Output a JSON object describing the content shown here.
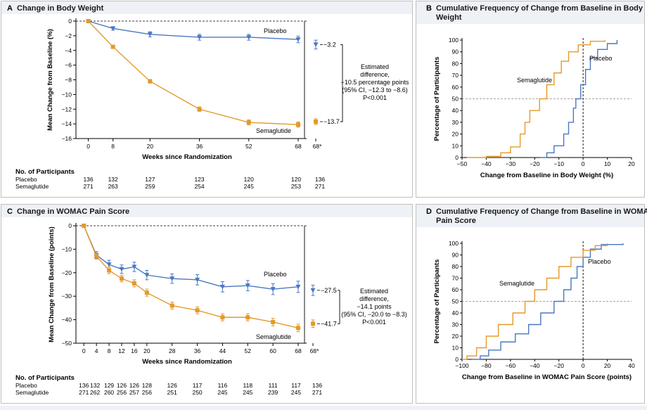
{
  "colors": {
    "placebo": "#4a78c0",
    "semaglutide": "#e39a2b",
    "header_bg": "#eef1f6",
    "border": "#bfbfbf"
  },
  "chart_data": [
    {
      "id": "A",
      "letter": "A",
      "type": "line",
      "title": "Change in Body Weight",
      "xlabel": "Weeks since Randomization",
      "ylabel": "Mean Change from Baseline (%)",
      "x": [
        0,
        8,
        20,
        36,
        52,
        68
      ],
      "x_ticks": [
        "0",
        "8",
        "20",
        "36",
        "52",
        "68"
      ],
      "x_extra_tick": "68*",
      "ylim": [
        -16,
        0
      ],
      "y_ticks": [
        0,
        -2,
        -4,
        -6,
        -8,
        -10,
        -12,
        -14,
        -16
      ],
      "series": [
        {
          "name": "Placebo",
          "values": [
            0,
            -1.0,
            -1.8,
            -2.2,
            -2.2,
            -2.5
          ],
          "err": [
            0,
            0.25,
            0.35,
            0.4,
            0.4,
            0.45
          ],
          "end_value": -3.2,
          "end_label": "−3.2",
          "end_err": 0.6
        },
        {
          "name": "Semaglutide",
          "values": [
            0,
            -3.5,
            -8.2,
            -12.0,
            -13.8,
            -14.1
          ],
          "err": [
            0,
            0.2,
            0.25,
            0.3,
            0.35,
            0.35
          ],
          "end_value": -13.7,
          "end_label": "−13.7",
          "end_err": 0.4
        }
      ],
      "annotation": [
        "Estimated",
        "difference,",
        "−10.5 percentage points",
        "(95% CI, −12.3 to −8.6)",
        "P<0.001"
      ],
      "participants_title": "No. of Participants",
      "participants": [
        {
          "label": "Placebo",
          "counts": [
            "136",
            "132",
            "127",
            "123",
            "120",
            "120",
            "136"
          ]
        },
        {
          "label": "Semaglutide",
          "counts": [
            "271",
            "263",
            "259",
            "254",
            "245",
            "253",
            "271"
          ]
        }
      ]
    },
    {
      "id": "B",
      "letter": "B",
      "type": "line",
      "title_lines": [
        "Cumulative Frequency of Change from Baseline in Body",
        "Weight"
      ],
      "xlabel": "Change from Baseline in Body Weight (%)",
      "ylabel": "Percentage of Participants",
      "xlim": [
        -50,
        20
      ],
      "x_ticks": [
        -50,
        -40,
        -30,
        -20,
        -10,
        0,
        10,
        20
      ],
      "ylim": [
        0,
        100
      ],
      "y_ticks": [
        0,
        10,
        20,
        30,
        40,
        50,
        60,
        70,
        80,
        90,
        100
      ],
      "reference_y": 50,
      "reference_x": 0,
      "series": [
        {
          "name": "Placebo",
          "points": [
            [
              -18,
              0
            ],
            [
              -15,
              4
            ],
            [
              -12,
              10
            ],
            [
              -8,
              20
            ],
            [
              -6,
              30
            ],
            [
              -4,
              42
            ],
            [
              -3,
              50
            ],
            [
              -1,
              62
            ],
            [
              1,
              75
            ],
            [
              3,
              85
            ],
            [
              6,
              92
            ],
            [
              10,
              97
            ],
            [
              14,
              100
            ]
          ]
        },
        {
          "name": "Semaglutide",
          "points": [
            [
              -48,
              0
            ],
            [
              -40,
              1
            ],
            [
              -34,
              4
            ],
            [
              -30,
              9
            ],
            [
              -26,
              20
            ],
            [
              -24,
              30
            ],
            [
              -22,
              40
            ],
            [
              -18,
              50
            ],
            [
              -15,
              62
            ],
            [
              -12,
              72
            ],
            [
              -9,
              82
            ],
            [
              -6,
              90
            ],
            [
              -2,
              96
            ],
            [
              3,
              99
            ],
            [
              9,
              100
            ]
          ]
        }
      ]
    },
    {
      "id": "C",
      "letter": "C",
      "type": "line",
      "title": "Change in WOMAC Pain Score",
      "xlabel": "Weeks since Randomization",
      "ylabel": "Mean Change from Baseline (points)",
      "x": [
        0,
        4,
        8,
        12,
        16,
        20,
        28,
        36,
        44,
        52,
        60,
        68
      ],
      "x_ticks": [
        "0",
        "4",
        "8",
        "12",
        "16",
        "20",
        "28",
        "36",
        "44",
        "52",
        "60",
        "68"
      ],
      "x_extra_tick": "68*",
      "ylim": [
        -50,
        0
      ],
      "y_ticks": [
        0,
        -10,
        -20,
        -30,
        -40,
        -50
      ],
      "series": [
        {
          "name": "Placebo",
          "values": [
            0,
            -12.5,
            -16.5,
            -18.5,
            -17.5,
            -21,
            -22.5,
            -23,
            -26,
            -25.5,
            -27,
            -26
          ],
          "err": [
            0,
            1.5,
            1.8,
            1.8,
            2,
            2,
            2,
            2.2,
            2.2,
            2.2,
            2.3,
            2.4
          ],
          "end_value": -27.5,
          "end_label": "−27.5",
          "end_err": 2.2
        },
        {
          "name": "Semaglutide",
          "values": [
            0,
            -13,
            -19,
            -22.5,
            -24.5,
            -28.5,
            -34,
            -36,
            -39,
            -39,
            -41,
            -43.5
          ],
          "err": [
            0,
            1.2,
            1.4,
            1.4,
            1.5,
            1.5,
            1.5,
            1.5,
            1.5,
            1.5,
            1.6,
            1.6
          ],
          "end_value": -41.7,
          "end_label": "−41.7",
          "end_err": 1.6
        }
      ],
      "annotation": [
        "Estimated",
        "difference,",
        "−14.1 points",
        "(95% CI, −20.0 to −8.3)",
        "P<0.001"
      ],
      "participants_title": "No. of Participants",
      "participants": [
        {
          "label": "Placebo",
          "counts": [
            "136",
            "132",
            "129",
            "126",
            "126",
            "128",
            "126",
            "117",
            "116",
            "118",
            "111",
            "117",
            "136"
          ]
        },
        {
          "label": "Semaglutide",
          "counts": [
            "271",
            "262",
            "260",
            "256",
            "257",
            "256",
            "251",
            "250",
            "245",
            "245",
            "239",
            "245",
            "271"
          ]
        }
      ]
    },
    {
      "id": "D",
      "letter": "D",
      "type": "line",
      "title_lines": [
        "Cumulative Frequency of Change from Baseline in WOMAC",
        "Pain Score"
      ],
      "xlabel": "Change from Baseline in WOMAC Pain Score (points)",
      "ylabel": "Percentage of Participants",
      "xlim": [
        -100,
        40
      ],
      "x_ticks": [
        -100,
        -80,
        -60,
        -40,
        -20,
        0,
        20,
        40
      ],
      "ylim": [
        0,
        100
      ],
      "y_ticks": [
        0,
        10,
        20,
        30,
        40,
        50,
        60,
        70,
        80,
        90,
        100
      ],
      "reference_y": 50,
      "reference_x": 0,
      "series": [
        {
          "name": "Placebo",
          "points": [
            [
              -92,
              0
            ],
            [
              -85,
              3
            ],
            [
              -78,
              8
            ],
            [
              -68,
              15
            ],
            [
              -56,
              22
            ],
            [
              -45,
              30
            ],
            [
              -35,
              40
            ],
            [
              -24,
              50
            ],
            [
              -16,
              60
            ],
            [
              -10,
              70
            ],
            [
              -5,
              80
            ],
            [
              0,
              88
            ],
            [
              6,
              95
            ],
            [
              15,
              99
            ],
            [
              33,
              100
            ]
          ]
        },
        {
          "name": "Semaglutide",
          "points": [
            [
              -100,
              0
            ],
            [
              -96,
              3
            ],
            [
              -88,
              10
            ],
            [
              -80,
              20
            ],
            [
              -70,
              30
            ],
            [
              -58,
              40
            ],
            [
              -48,
              50
            ],
            [
              -40,
              60
            ],
            [
              -30,
              70
            ],
            [
              -20,
              80
            ],
            [
              -10,
              88
            ],
            [
              0,
              94
            ],
            [
              10,
              98
            ],
            [
              20,
              100
            ]
          ]
        }
      ]
    }
  ]
}
